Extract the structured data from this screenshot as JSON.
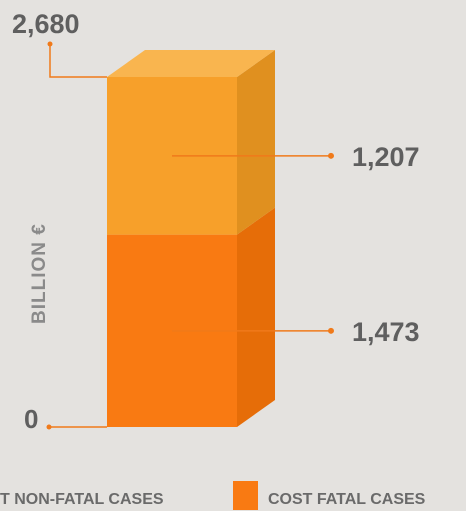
{
  "chart_data": {
    "type": "bar",
    "ylabel": "BILLION €",
    "ylim": [
      0,
      2680
    ],
    "total": 2680,
    "total_label": "2,680",
    "zero_label": "0",
    "series": [
      {
        "name": "COST FATAL CASES",
        "value": 1473,
        "value_label": "1,473",
        "color": "#f97a12",
        "side_color": "#e66d08",
        "top_color": "#fa8a2a"
      },
      {
        "name": "COST NON-FATAL CASES",
        "value": 1207,
        "value_label": "1,207",
        "color": "#f7a02a",
        "side_color": "#e0901f",
        "top_color": "#f9b54f"
      }
    ],
    "legend": [
      {
        "label": "COST NON-FATAL CASES",
        "visible_text": "T NON-FATAL CASES",
        "color": "#f7a02a"
      },
      {
        "label": "COST FATAL CASES",
        "visible_text": "COST FATAL CASES",
        "color": "#f97a12"
      }
    ],
    "leader_color": "#f07a1a"
  }
}
